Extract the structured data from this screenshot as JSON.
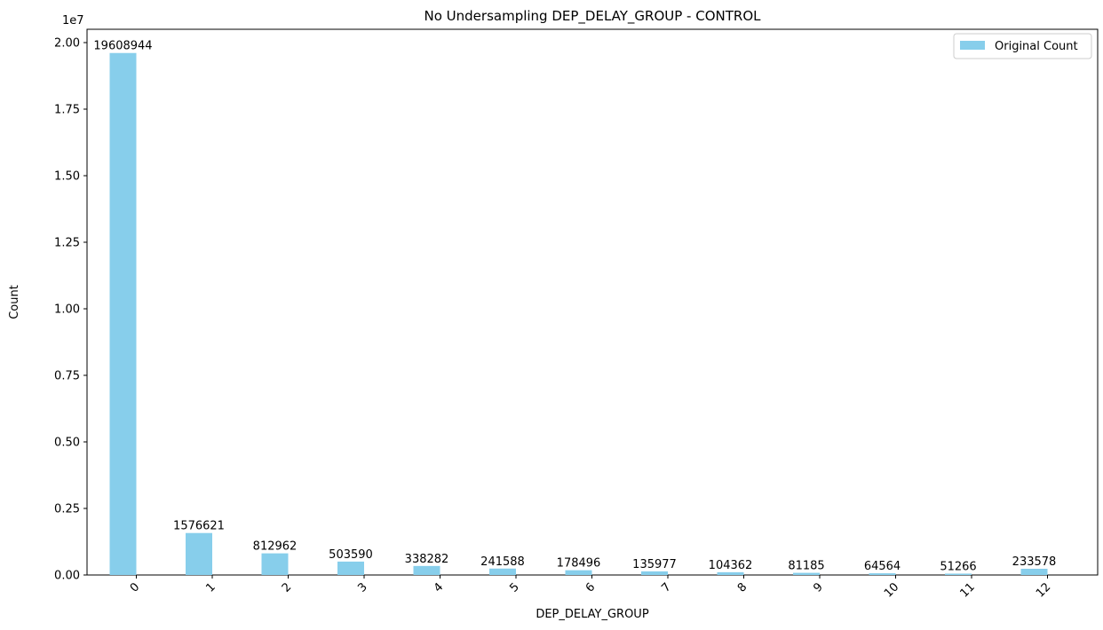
{
  "chart_data": {
    "type": "bar",
    "title": "No Undersampling DEP_DELAY_GROUP - CONTROL",
    "xlabel": "DEP_DELAY_GROUP",
    "ylabel": "Count",
    "y_offset_label": "1e7",
    "y_scale": 10000000,
    "ylim": [
      0,
      20500000
    ],
    "y_ticks": [
      0,
      0.25,
      0.5,
      0.75,
      1.0,
      1.25,
      1.5,
      1.75,
      2.0
    ],
    "y_tick_labels": [
      "0.00",
      "0.25",
      "0.50",
      "0.75",
      "1.00",
      "1.25",
      "1.50",
      "1.75",
      "2.00"
    ],
    "categories": [
      "0",
      "1",
      "2",
      "3",
      "4",
      "5",
      "6",
      "7",
      "8",
      "9",
      "10",
      "11",
      "12"
    ],
    "series": [
      {
        "name": "Original Count",
        "color": "#87ceeb",
        "values": [
          19608944,
          1576621,
          812962,
          503590,
          338282,
          241588,
          178496,
          135977,
          104362,
          81185,
          64564,
          51266,
          233578
        ]
      }
    ],
    "data_labels": [
      "19608944",
      "1576621",
      "812962",
      "503590",
      "338282",
      "241588",
      "178496",
      "135977",
      "104362",
      "81185",
      "64564",
      "51266",
      "233578"
    ],
    "x_tick_rotation": -45,
    "legend": {
      "position": "top-right",
      "entries": [
        "Original Count"
      ]
    },
    "grid": false
  }
}
